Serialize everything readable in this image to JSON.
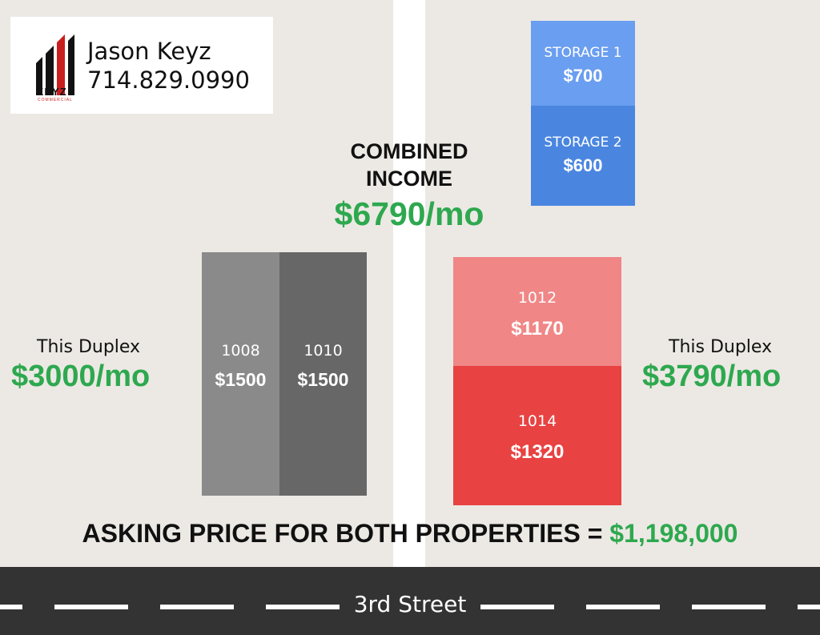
{
  "agent": {
    "name": "Jason Keyz",
    "phone": "714.829.0990",
    "logo_word": "KEYZ",
    "logo_sub": "COMMERCIAL"
  },
  "storage": [
    {
      "label": "STORAGE 1",
      "amount": "$700"
    },
    {
      "label": "STORAGE 2",
      "amount": "$600"
    }
  ],
  "combined": {
    "line1": "COMBINED",
    "line2": "INCOME",
    "amount": "$6790/mo"
  },
  "left_duplex": {
    "label": "This Duplex",
    "amount": "$3000/mo",
    "units": [
      {
        "number": "1008",
        "rent": "$1500"
      },
      {
        "number": "1010",
        "rent": "$1500"
      }
    ]
  },
  "right_duplex": {
    "label": "This Duplex",
    "amount": "$3790/mo",
    "units": [
      {
        "number": "1012",
        "rent": "$1170"
      },
      {
        "number": "1014",
        "rent": "$1320"
      }
    ]
  },
  "asking": {
    "text": "ASKING PRICE FOR BOTH PROPERTIES = ",
    "price": "$1,198,000"
  },
  "street": {
    "name": "3rd Street"
  },
  "colors": {
    "green": "#2ea84f",
    "storage_1": "#6a9ef0",
    "storage_2": "#4a86e0",
    "unit_1008": "#8a8a8a",
    "unit_1010": "#676767",
    "unit_1012": "#f08686",
    "unit_1014": "#e84242",
    "logo_red": "#c81e1e"
  }
}
